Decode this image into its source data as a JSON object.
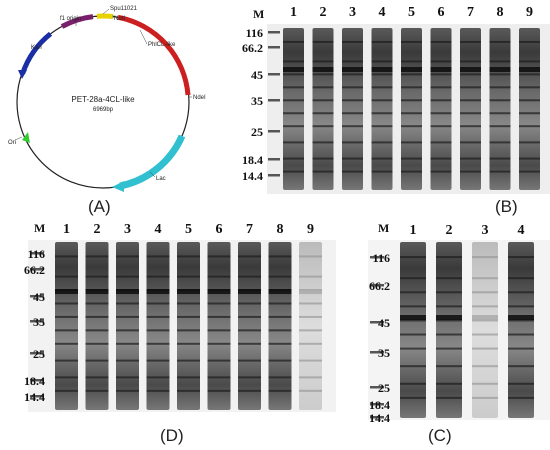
{
  "plasmid": {
    "name": "PET-28a-4CL-like",
    "size": "6969bp",
    "features": {
      "f1": "f1 origin",
      "spu": "Spu11021",
      "notl": "NotI",
      "phl": "PhlCL-like",
      "ndel": "NdeI",
      "kan": "Kan",
      "ori": "Ori",
      "lac": "Lac"
    },
    "colors": {
      "kan": "#1a2ea6",
      "f1": "#7a1f6b",
      "spu": "#e8d200",
      "phl": "#cc1f1f",
      "lac": "#30c0d0",
      "ori": "#33cc33"
    }
  },
  "panels": {
    "A": "(A)",
    "B": "(B)",
    "C": "(C)",
    "D": "(D)"
  },
  "marker_label": "M",
  "markers": [
    "116",
    "66.2",
    "45",
    "35",
    "25",
    "18.4",
    "14.4"
  ],
  "gel_B": {
    "lanes": [
      "1",
      "2",
      "3",
      "4",
      "5",
      "6",
      "7",
      "8",
      "9"
    ]
  },
  "gel_D": {
    "lanes": [
      "1",
      "2",
      "3",
      "4",
      "5",
      "6",
      "7",
      "8",
      "9"
    ]
  },
  "gel_C": {
    "lanes": [
      "1",
      "2",
      "3",
      "4"
    ]
  }
}
